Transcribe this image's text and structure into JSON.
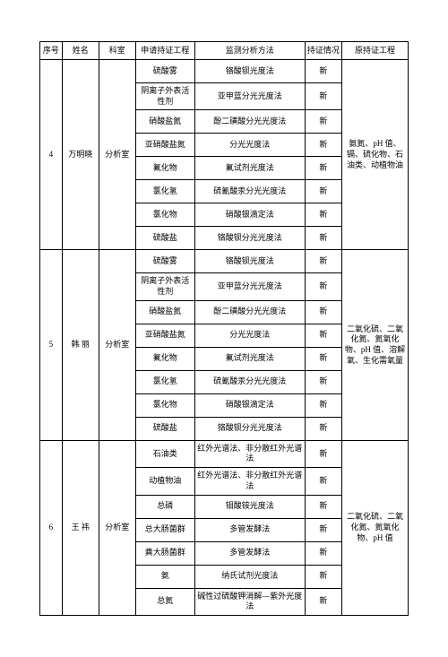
{
  "headers": {
    "index": "序号",
    "name": "姓名",
    "dept": "科室",
    "apply": "申请持证工程",
    "method": "监测分析方法",
    "cert": "持证情况",
    "orig": "原持证工程"
  },
  "persons": [
    {
      "index": "4",
      "name": "万明晓",
      "dept": "分析室",
      "orig": "氨氮、pH 值、镉、硫化物、石油类、动植物油",
      "items": [
        {
          "apply": "硫酸雾",
          "method": "铬酸钡光度法",
          "cert": "新"
        },
        {
          "apply": "阴离子外表活性剂",
          "method": "亚甲蓝分光光度法",
          "cert": "新"
        },
        {
          "apply": "硝酸盐氮",
          "method": "酚二磺酸分光光度法",
          "cert": "新"
        },
        {
          "apply": "亚硝酸盐氮",
          "method": "分光光度法",
          "cert": "新"
        },
        {
          "apply": "氟化物",
          "method": "氟试剂光度法",
          "cert": "新"
        },
        {
          "apply": "氯化氢",
          "method": "硫氰酸汞分光光度法",
          "cert": "新"
        },
        {
          "apply": "氯化物",
          "method": "硝酸银滴定法",
          "cert": "新"
        },
        {
          "apply": "硫酸盐",
          "method": "铬酸钡分光光度法",
          "cert": "新"
        }
      ]
    },
    {
      "index": "5",
      "name": "韩 丽",
      "dept": "分析室",
      "orig": "二氧化硫、二氧化氮、氮氧化物、pH 值、溶解氧、生化需氧量",
      "items": [
        {
          "apply": "硫酸雾",
          "method": "铬酸钡光度法",
          "cert": "新"
        },
        {
          "apply": "阴离子外表活性剂",
          "method": "亚甲蓝分光光度法",
          "cert": "新"
        },
        {
          "apply": "硝酸盐氮",
          "method": "酚二磺酸分光光度法",
          "cert": "新"
        },
        {
          "apply": "亚硝酸盐氮",
          "method": "分光光度法",
          "cert": "新"
        },
        {
          "apply": "氟化物",
          "method": "氟试剂光度法",
          "cert": "新"
        },
        {
          "apply": "氯化氢",
          "method": "硫氰酸汞分光光度法",
          "cert": "新"
        },
        {
          "apply": "氯化物",
          "method": "硝酸银滴定法",
          "cert": "新"
        },
        {
          "apply": "硫酸盐",
          "method": "铬酸钡分光光度法",
          "cert": "新"
        }
      ]
    },
    {
      "index": "6",
      "name": "王 祎",
      "dept": "分析室",
      "orig": "二氧化硫、二氧化氮、氮氧化物、pH 值",
      "items": [
        {
          "apply": "石油类",
          "method": "红外光谱法、非分散红外光谱法",
          "cert": "新"
        },
        {
          "apply": "动植物油",
          "method": "红外光谱法、非分散红外光谱法",
          "cert": "新"
        },
        {
          "apply": "总磷",
          "method": "钼酸铵光度法",
          "cert": "新"
        },
        {
          "apply": "总大肠菌群",
          "method": "多管发酵法",
          "cert": "新"
        },
        {
          "apply": "粪大肠菌群",
          "method": "多管发酵法",
          "cert": "新"
        },
        {
          "apply": "氨",
          "method": "纳氏试剂光度法",
          "cert": "新"
        },
        {
          "apply": "总氮",
          "method": "碱性过硫酸钾消解—紫外光度法",
          "cert": "新"
        }
      ]
    }
  ]
}
